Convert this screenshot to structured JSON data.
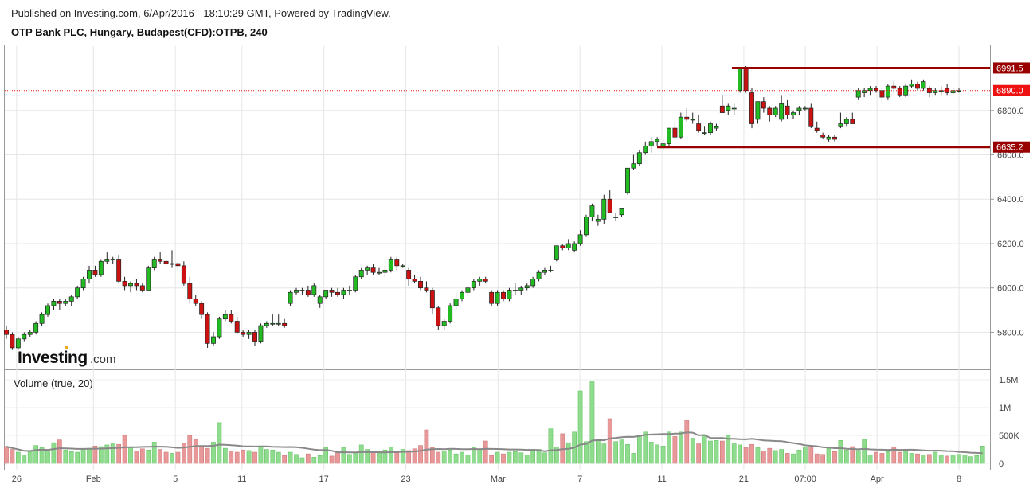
{
  "header": {
    "published": "Published on Investing.com, 6/Apr/2016 - 18:10:29 GMT, Powered by TradingView.",
    "symbol": "OTP Bank PLC, Hungary, Budapest(CFD):OTPB, 240"
  },
  "logo": {
    "name": "Investing",
    "suffix": ".com"
  },
  "colors": {
    "up": "#22bb22",
    "down": "#cc1111",
    "level": "#990000",
    "current": "#ee1111",
    "volUp": "#8fdc8f",
    "volDown": "#e89898",
    "volMA": "#888888"
  },
  "chart_data": {
    "type": "candlestick",
    "title": "",
    "price_axis": {
      "ticks": [
        "5800.0",
        "6000.0",
        "6200.0",
        "6400.0",
        "6600.0",
        "6800.0"
      ],
      "min": 5640,
      "max": 7090
    },
    "time_axis": {
      "ticks": [
        "26",
        "Feb",
        "5",
        "11",
        "17",
        "23",
        "Mar",
        "7",
        "11",
        "21",
        "07:00",
        "Apr",
        "8"
      ]
    },
    "price_labels": {
      "resistance": "6991.5",
      "current": "6890.0",
      "support": "6635.2"
    },
    "levels": {
      "resistance": 6991.5,
      "current": 6890.0,
      "support": 6635.2
    },
    "volume": {
      "title": "Volume (true, 20)",
      "ticks": [
        "0",
        "500K",
        "1M",
        "1.5M"
      ],
      "max": 1600000
    },
    "candles": [
      [
        5810,
        5830,
        5770,
        5790
      ],
      [
        5790,
        5800,
        5720,
        5730
      ],
      [
        5730,
        5780,
        5720,
        5770
      ],
      [
        5770,
        5800,
        5760,
        5790
      ],
      [
        5790,
        5810,
        5780,
        5800
      ],
      [
        5800,
        5850,
        5790,
        5840
      ],
      [
        5840,
        5890,
        5830,
        5880
      ],
      [
        5880,
        5930,
        5870,
        5920
      ],
      [
        5920,
        5950,
        5900,
        5940
      ],
      [
        5940,
        5950,
        5900,
        5930
      ],
      [
        5930,
        5950,
        5920,
        5940
      ],
      [
        5940,
        5970,
        5920,
        5960
      ],
      [
        5960,
        6010,
        5950,
        6000
      ],
      [
        6000,
        6050,
        5990,
        6040
      ],
      [
        6040,
        6100,
        6020,
        6080
      ],
      [
        6080,
        6100,
        6050,
        6060
      ],
      [
        6060,
        6130,
        6050,
        6120
      ],
      [
        6120,
        6160,
        6110,
        6130
      ],
      [
        6130,
        6140,
        6110,
        6130
      ],
      [
        6130,
        6150,
        6020,
        6030
      ],
      [
        6030,
        6050,
        5990,
        6010
      ],
      [
        6010,
        6030,
        5980,
        6020
      ],
      [
        6020,
        6040,
        5990,
        6010
      ],
      [
        6010,
        6020,
        5980,
        5990
      ],
      [
        5990,
        6100,
        5990,
        6090
      ],
      [
        6090,
        6140,
        6080,
        6130
      ],
      [
        6130,
        6160,
        6110,
        6120
      ],
      [
        6120,
        6130,
        6100,
        6110
      ],
      [
        6110,
        6170,
        6090,
        6110
      ],
      [
        6110,
        6120,
        6080,
        6100
      ],
      [
        6100,
        6120,
        6010,
        6020
      ],
      [
        6020,
        6050,
        5930,
        5950
      ],
      [
        5950,
        5970,
        5920,
        5930
      ],
      [
        5930,
        5940,
        5860,
        5880
      ],
      [
        5880,
        5890,
        5730,
        5750
      ],
      [
        5750,
        5800,
        5740,
        5780
      ],
      [
        5780,
        5870,
        5770,
        5860
      ],
      [
        5860,
        5900,
        5850,
        5880
      ],
      [
        5880,
        5900,
        5840,
        5850
      ],
      [
        5850,
        5870,
        5790,
        5800
      ],
      [
        5800,
        5810,
        5780,
        5790
      ],
      [
        5790,
        5810,
        5770,
        5800
      ],
      [
        5800,
        5810,
        5740,
        5760
      ],
      [
        5760,
        5840,
        5750,
        5830
      ],
      [
        5830,
        5850,
        5820,
        5840
      ],
      [
        5840,
        5880,
        5830,
        5840
      ],
      [
        5840,
        5880,
        5830,
        5840
      ],
      [
        5840,
        5860,
        5820,
        5830
      ],
      [
        5930,
        5990,
        5920,
        5980
      ],
      [
        5980,
        6000,
        5970,
        5990
      ],
      [
        5990,
        6000,
        5970,
        5990
      ],
      [
        5990,
        6010,
        5960,
        5970
      ],
      [
        5970,
        6020,
        5960,
        6010
      ],
      [
        5930,
        5970,
        5910,
        5960
      ],
      [
        5960,
        5990,
        5950,
        5990
      ],
      [
        5990,
        6000,
        5960,
        5980
      ],
      [
        5980,
        6000,
        5960,
        5970
      ],
      [
        5970,
        6000,
        5950,
        5990
      ],
      [
        5990,
        6010,
        5970,
        5990
      ],
      [
        5990,
        6060,
        5980,
        6050
      ],
      [
        6050,
        6090,
        6040,
        6080
      ],
      [
        6080,
        6100,
        6060,
        6090
      ],
      [
        6090,
        6110,
        6060,
        6070
      ],
      [
        6070,
        6090,
        6060,
        6070
      ],
      [
        6070,
        6100,
        6050,
        6080
      ],
      [
        6080,
        6140,
        6070,
        6130
      ],
      [
        6130,
        6140,
        6080,
        6100
      ],
      [
        6100,
        6110,
        6090,
        6100
      ],
      [
        6080,
        6090,
        6010,
        6040
      ],
      [
        6040,
        6060,
        6020,
        6030
      ],
      [
        6030,
        6050,
        5990,
        6000
      ],
      [
        6000,
        6030,
        5980,
        5990
      ],
      [
        5990,
        6000,
        5880,
        5910
      ],
      [
        5910,
        5920,
        5810,
        5830
      ],
      [
        5830,
        5860,
        5810,
        5850
      ],
      [
        5850,
        5930,
        5840,
        5920
      ],
      [
        5920,
        5980,
        5900,
        5950
      ],
      [
        5950,
        5990,
        5940,
        5980
      ],
      [
        5980,
        6010,
        5970,
        6000
      ],
      [
        6000,
        6040,
        5990,
        6030
      ],
      [
        6030,
        6050,
        6010,
        6040
      ],
      [
        6040,
        6050,
        6020,
        6030
      ],
      [
        5980,
        5990,
        5920,
        5930
      ],
      [
        5930,
        5990,
        5920,
        5980
      ],
      [
        5980,
        5990,
        5940,
        5950
      ],
      [
        5950,
        6000,
        5940,
        5990
      ],
      [
        5990,
        6020,
        5970,
        5990
      ],
      [
        5990,
        6010,
        5970,
        6000
      ],
      [
        6000,
        6020,
        5990,
        6010
      ],
      [
        6010,
        6050,
        6000,
        6040
      ],
      [
        6040,
        6080,
        6030,
        6070
      ],
      [
        6070,
        6090,
        6060,
        6080
      ],
      [
        6080,
        6100,
        6070,
        6080
      ],
      [
        6130,
        6190,
        6120,
        6190
      ],
      [
        6190,
        6200,
        6170,
        6180
      ],
      [
        6180,
        6220,
        6170,
        6200
      ],
      [
        6170,
        6210,
        6160,
        6200
      ],
      [
        6200,
        6260,
        6190,
        6240
      ],
      [
        6240,
        6330,
        6230,
        6320
      ],
      [
        6320,
        6380,
        6300,
        6370
      ],
      [
        6300,
        6330,
        6280,
        6310
      ],
      [
        6310,
        6420,
        6290,
        6400
      ],
      [
        6400,
        6440,
        6350,
        6340
      ],
      [
        6320,
        6340,
        6300,
        6320
      ],
      [
        6330,
        6360,
        6320,
        6360
      ],
      [
        6430,
        6540,
        6420,
        6540
      ],
      [
        6540,
        6600,
        6530,
        6560
      ],
      [
        6560,
        6620,
        6550,
        6610
      ],
      [
        6610,
        6660,
        6600,
        6640
      ],
      [
        6640,
        6680,
        6610,
        6660
      ],
      [
        6660,
        6680,
        6640,
        6670
      ],
      [
        6640,
        6670,
        6620,
        6650
      ],
      [
        6650,
        6720,
        6640,
        6720
      ],
      [
        6720,
        6750,
        6670,
        6680
      ],
      [
        6680,
        6790,
        6670,
        6770
      ],
      [
        6770,
        6810,
        6750,
        6760
      ],
      [
        6760,
        6790,
        6740,
        6760
      ],
      [
        6740,
        6780,
        6700,
        6710
      ],
      [
        6700,
        6730,
        6690,
        6700
      ],
      [
        6700,
        6750,
        6690,
        6740
      ],
      [
        6720,
        6740,
        6710,
        6730
      ],
      [
        6820,
        6870,
        6800,
        6790
      ],
      [
        6800,
        6830,
        6780,
        6820
      ],
      [
        6810,
        6830,
        6780,
        6810
      ],
      [
        6890,
        6990,
        6880,
        6990
      ],
      [
        6990,
        7000,
        6880,
        6890
      ],
      [
        6880,
        6900,
        6720,
        6740
      ],
      [
        6760,
        6840,
        6740,
        6840
      ],
      [
        6840,
        6860,
        6790,
        6810
      ],
      [
        6810,
        6820,
        6750,
        6780
      ],
      [
        6780,
        6820,
        6770,
        6810
      ],
      [
        6760,
        6870,
        6750,
        6830
      ],
      [
        6820,
        6850,
        6760,
        6780
      ],
      [
        6780,
        6800,
        6760,
        6790
      ],
      [
        6800,
        6820,
        6780,
        6810
      ],
      [
        6810,
        6820,
        6800,
        6810
      ],
      [
        6810,
        6830,
        6720,
        6730
      ],
      [
        6720,
        6750,
        6700,
        6710
      ],
      [
        6690,
        6700,
        6670,
        6680
      ],
      [
        6670,
        6690,
        6660,
        6680
      ],
      [
        6680,
        6690,
        6660,
        6670
      ],
      [
        6730,
        6790,
        6720,
        6740
      ],
      [
        6740,
        6770,
        6730,
        6760
      ],
      [
        6760,
        6790,
        6740,
        6740
      ],
      [
        6860,
        6900,
        6850,
        6890
      ],
      [
        6880,
        6900,
        6860,
        6890
      ],
      [
        6890,
        6910,
        6870,
        6900
      ],
      [
        6900,
        6910,
        6880,
        6890
      ],
      [
        6890,
        6900,
        6840,
        6860
      ],
      [
        6860,
        6920,
        6850,
        6910
      ],
      [
        6910,
        6930,
        6880,
        6900
      ],
      [
        6900,
        6910,
        6860,
        6870
      ],
      [
        6870,
        6920,
        6860,
        6910
      ],
      [
        6910,
        6940,
        6900,
        6920
      ],
      [
        6920,
        6930,
        6890,
        6900
      ],
      [
        6900,
        6940,
        6890,
        6930
      ],
      [
        6900,
        6910,
        6860,
        6880
      ],
      [
        6880,
        6900,
        6870,
        6890
      ],
      [
        6890,
        6910,
        6870,
        6890
      ],
      [
        6900,
        6920,
        6870,
        6880
      ],
      [
        6880,
        6900,
        6870,
        6890
      ],
      [
        6890,
        6900,
        6880,
        6890
      ]
    ],
    "volumes": [
      300000,
      250000,
      200000,
      150000,
      210000,
      320000,
      280000,
      220000,
      370000,
      420000,
      240000,
      210000,
      200000,
      250000,
      270000,
      310000,
      300000,
      330000,
      360000,
      340000,
      500000,
      290000,
      220000,
      260000,
      240000,
      380000,
      250000,
      200000,
      180000,
      200000,
      350000,
      500000,
      430000,
      300000,
      270000,
      380000,
      730000,
      270000,
      220000,
      200000,
      240000,
      230000,
      200000,
      300000,
      250000,
      240000,
      200000,
      140000,
      200000,
      160000,
      100000,
      170000,
      110000,
      140000,
      280000,
      130000,
      200000,
      280000,
      160000,
      200000,
      330000,
      250000,
      200000,
      220000,
      240000,
      290000,
      220000,
      250000,
      230000,
      260000,
      320000,
      600000,
      280000,
      200000,
      220000,
      240000,
      170000,
      200000,
      150000,
      280000,
      250000,
      400000,
      140000,
      200000,
      170000,
      200000,
      210000,
      190000,
      150000,
      250000,
      250000,
      190000,
      620000,
      290000,
      530000,
      370000,
      560000,
      1300000,
      390000,
      1480000,
      420000,
      350000,
      800000,
      390000,
      420000,
      340000,
      180000,
      500000,
      560000,
      380000,
      330000,
      310000,
      560000,
      480000,
      560000,
      770000,
      450000,
      350000,
      510000,
      400000,
      410000,
      400000,
      500000,
      350000,
      330000,
      280000,
      340000,
      280000,
      220000,
      270000,
      230000,
      250000,
      180000,
      170000,
      240000,
      290000,
      300000,
      170000,
      160000,
      270000,
      210000,
      410000,
      240000,
      300000,
      230000,
      430000,
      150000,
      200000,
      180000,
      210000,
      290000,
      200000,
      220000,
      180000,
      170000,
      150000,
      160000,
      200000,
      150000,
      130000,
      150000,
      160000,
      150000,
      120000,
      140000,
      310000
    ]
  }
}
